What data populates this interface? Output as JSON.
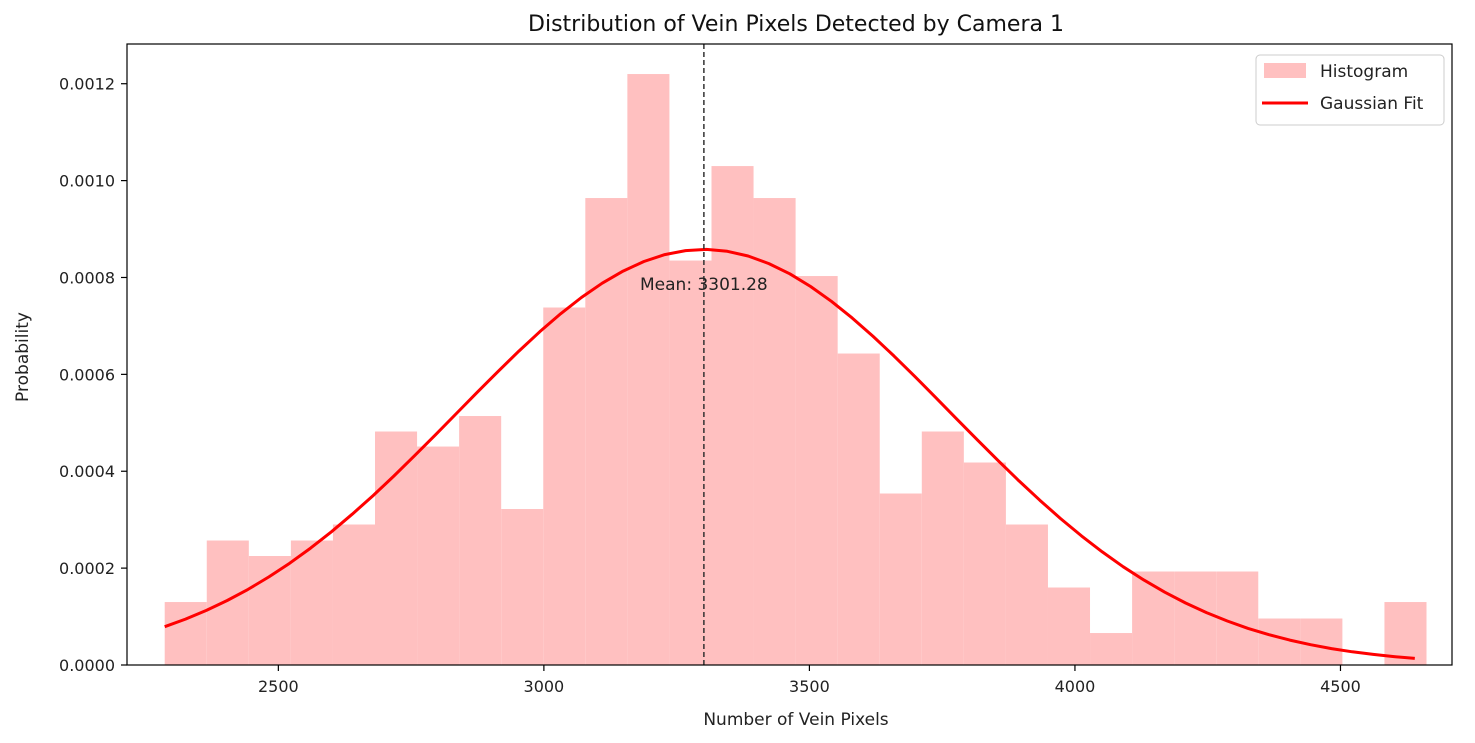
{
  "chart_data": {
    "type": "bar",
    "title": "Distribution of Vein Pixels Detected by Camera 1",
    "xlabel": "Number of Vein Pixels",
    "ylabel": "Probability",
    "xlim": [
      2215,
      4710
    ],
    "ylim": [
      0,
      0.001282
    ],
    "xticks": [
      2500,
      3000,
      3500,
      4000,
      4500
    ],
    "yticks": [
      0.0,
      0.0002,
      0.0004,
      0.0006,
      0.0008,
      0.001,
      0.0012
    ],
    "ytick_labels": [
      "0.0000",
      "0.0002",
      "0.0004",
      "0.0006",
      "0.0008",
      "0.0010",
      "0.0012"
    ],
    "histogram": {
      "name": "Histogram",
      "color": "#ffc0c0",
      "bin_start": 2286,
      "bin_width": 79.2,
      "values": [
        0.00013,
        0.000257,
        0.000225,
        0.000257,
        0.00029,
        0.000482,
        0.000451,
        0.000514,
        0.000322,
        0.000738,
        0.000964,
        0.00122,
        0.000835,
        0.00103,
        0.000964,
        0.000803,
        0.000643,
        0.000354,
        0.000482,
        0.000418,
        0.00029,
        0.00016,
        6.6e-05,
        0.000193,
        0.000193,
        0.000193,
        9.6e-05,
        9.6e-05,
        0,
        0.00013
      ]
    },
    "gaussian_fit": {
      "name": "Gaussian Fit",
      "color": "#ff0000",
      "mean": 3301.28,
      "std": 465,
      "x_start": 2286,
      "x_end": 4640
    },
    "mean_line": {
      "x": 3301.28,
      "label": "Mean: 3301.28",
      "color": "#333333"
    },
    "grid": false,
    "legend": "top-right"
  }
}
